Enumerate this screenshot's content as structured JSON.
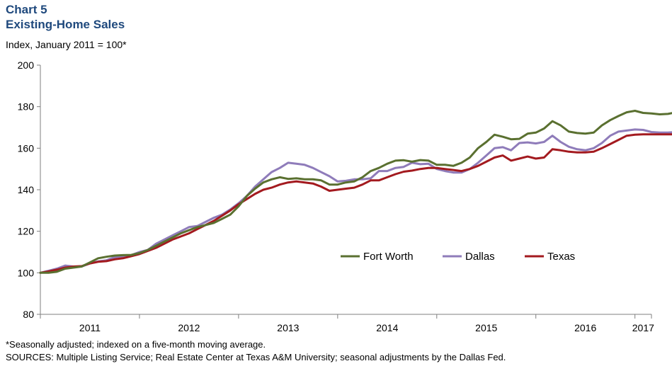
{
  "chart_number": "Chart 5",
  "chart_data": {
    "type": "line",
    "title": "Existing-Home Sales",
    "ylabel": "Index, January 2011 = 100*",
    "xlabel": "",
    "ylim": [
      80,
      200
    ],
    "yticks": [
      80,
      100,
      120,
      140,
      160,
      180,
      200
    ],
    "year_labels": [
      "2011",
      "2012",
      "2013",
      "2014",
      "2015",
      "2016",
      "2017"
    ],
    "x_start": "2011-01",
    "x_end": "2017-02",
    "grid": false,
    "legend_position": "lower-right",
    "series": [
      {
        "name": "Fort Worth",
        "color": "#5a7030",
        "values": [
          100,
          100,
          100.5,
          102,
          102.5,
          103,
          105,
          107,
          107.7,
          108.3,
          108.5,
          108.6,
          109.5,
          111,
          113,
          115,
          117,
          119,
          120.5,
          122,
          123,
          124,
          126,
          128,
          132,
          137,
          140.5,
          143.5,
          145,
          146,
          145.2,
          145.5,
          145,
          145,
          144.5,
          142.5,
          142.5,
          143.5,
          144,
          146,
          149,
          150.5,
          152.5,
          154,
          154.2,
          153.5,
          154.3,
          154,
          152,
          152,
          151.5,
          153,
          155.5,
          160,
          163,
          166.5,
          165.5,
          164.3,
          164.5,
          167,
          167.5,
          169.5,
          173,
          171,
          168,
          167.3,
          167,
          167.5,
          171,
          173.5,
          175.5,
          177.3,
          178,
          177,
          176.7,
          176.3,
          176.5,
          177.3
        ]
      },
      {
        "name": "Dallas",
        "color": "#8f7cba",
        "values": [
          100,
          101,
          102,
          103.5,
          103,
          103,
          104.5,
          105.5,
          106,
          107.5,
          108,
          108.5,
          110,
          111,
          114,
          116,
          118,
          120,
          122,
          122.5,
          124.5,
          126.5,
          128,
          130.5,
          133.5,
          137,
          141.5,
          145,
          148.5,
          150.5,
          153,
          152.5,
          152,
          150.5,
          148.5,
          146.5,
          144,
          144.3,
          145,
          145,
          145.5,
          149,
          149,
          150.5,
          151,
          153,
          152.3,
          152.5,
          150,
          149,
          148.3,
          148.3,
          150,
          153,
          156.5,
          160,
          160.5,
          159,
          162.5,
          162.8,
          162.3,
          163,
          166,
          163,
          160.7,
          159.5,
          159,
          160,
          162.5,
          166,
          168,
          168.5,
          169,
          168.8,
          167.8,
          167.5,
          167.5,
          167.8
        ]
      },
      {
        "name": "Texas",
        "color": "#a31a1f",
        "values": [
          100,
          100.7,
          101.5,
          102.5,
          103,
          103.2,
          104.5,
          105.3,
          105.6,
          106.5,
          107,
          108,
          109,
          110.5,
          112,
          114,
          116,
          117.5,
          119,
          121,
          123,
          125,
          127.5,
          130,
          133,
          135.5,
          138,
          140,
          141,
          142.5,
          143.5,
          144,
          143.5,
          143,
          141.5,
          139.5,
          140,
          140.5,
          141,
          142.5,
          144.5,
          144.5,
          146,
          147.5,
          148.7,
          149.2,
          150,
          150.5,
          150.5,
          150,
          149.5,
          149,
          150,
          151.5,
          153.5,
          155.5,
          156.5,
          154,
          155,
          156,
          155,
          155.5,
          159.5,
          159,
          158.3,
          158,
          158,
          158.3,
          160,
          162,
          164,
          166,
          166.5,
          166.7,
          166.7,
          166.7,
          166.7,
          166.7
        ]
      }
    ]
  },
  "footnote": "*Seasonally adjusted; indexed on a five-month moving average.",
  "sources": "SOURCES: Multiple Listing Service; Real Estate Center at Texas A&M University; seasonal adjustments by the Dallas Fed."
}
